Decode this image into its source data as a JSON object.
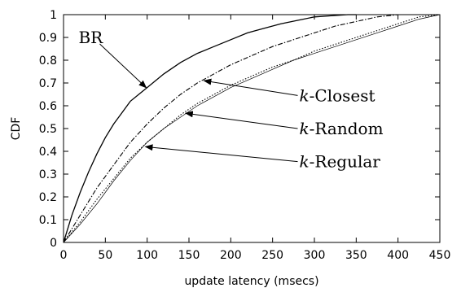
{
  "chart_data": {
    "type": "line",
    "xlabel": "update latency (msecs)",
    "ylabel": "CDF",
    "xlim": [
      0,
      450
    ],
    "ylim": [
      0,
      1
    ],
    "xticks": [
      "0",
      "50",
      "100",
      "150",
      "200",
      "250",
      "300",
      "350",
      "400",
      "450"
    ],
    "yticks": [
      "0",
      "0.1",
      "0.2",
      "0.3",
      "0.4",
      "0.5",
      "0.6",
      "0.7",
      "0.8",
      "0.9",
      "1"
    ],
    "grid": false,
    "legend": "none",
    "series": [
      {
        "name": "BR",
        "style": "solid",
        "x": [
          0,
          10,
          20,
          30,
          40,
          50,
          60,
          70,
          80,
          90,
          100,
          120,
          140,
          160,
          180,
          200,
          220,
          240,
          260,
          280,
          300,
          320,
          340,
          350
        ],
        "y": [
          0,
          0.12,
          0.22,
          0.31,
          0.39,
          0.46,
          0.52,
          0.57,
          0.62,
          0.65,
          0.68,
          0.74,
          0.79,
          0.83,
          0.86,
          0.89,
          0.92,
          0.94,
          0.96,
          0.975,
          0.99,
          0.995,
          1.0,
          1.0
        ]
      },
      {
        "name": "k-Closest",
        "style": "dashdot",
        "x": [
          0,
          20,
          40,
          60,
          80,
          100,
          120,
          140,
          160,
          180,
          200,
          225,
          250,
          275,
          300,
          325,
          350,
          375,
          400
        ],
        "y": [
          0,
          0.12,
          0.24,
          0.34,
          0.44,
          0.52,
          0.59,
          0.65,
          0.7,
          0.74,
          0.78,
          0.82,
          0.86,
          0.89,
          0.92,
          0.95,
          0.97,
          0.99,
          1.0
        ]
      },
      {
        "name": "k-Random",
        "style": "dotted",
        "x": [
          0,
          20,
          40,
          60,
          80,
          100,
          120,
          140,
          160,
          180,
          200,
          225,
          250,
          275,
          300,
          325,
          350,
          375,
          400,
          425,
          450
        ],
        "y": [
          0,
          0.09,
          0.19,
          0.28,
          0.37,
          0.44,
          0.5,
          0.56,
          0.61,
          0.65,
          0.69,
          0.73,
          0.77,
          0.8,
          0.84,
          0.87,
          0.9,
          0.93,
          0.96,
          0.99,
          1.0
        ]
      },
      {
        "name": "k-Regular",
        "style": "solid-thin",
        "x": [
          0,
          20,
          40,
          60,
          80,
          100,
          120,
          140,
          160,
          180,
          200,
          225,
          250,
          275,
          300,
          325,
          350,
          375,
          400,
          425,
          450
        ],
        "y": [
          0,
          0.08,
          0.17,
          0.27,
          0.36,
          0.44,
          0.5,
          0.55,
          0.6,
          0.64,
          0.68,
          0.72,
          0.76,
          0.8,
          0.83,
          0.86,
          0.89,
          0.92,
          0.95,
          0.98,
          1.0
        ]
      }
    ],
    "annotations": [
      {
        "text": "BR",
        "series": 0,
        "point_x": 95,
        "text_x": 18,
        "text_y": 0.9
      },
      {
        "text_italic": "k",
        "text_rest": "-Closest",
        "series": 1,
        "point_x": 165,
        "text_x": 282,
        "text_y": 0.645
      },
      {
        "text_italic": "k",
        "text_rest": "-Random",
        "series": 2,
        "point_x": 143,
        "text_x": 282,
        "text_y": 0.5
      },
      {
        "text_italic": "k",
        "text_rest": "-Regular",
        "series": 3,
        "point_x": 95,
        "text_x": 282,
        "text_y": 0.355
      }
    ]
  }
}
